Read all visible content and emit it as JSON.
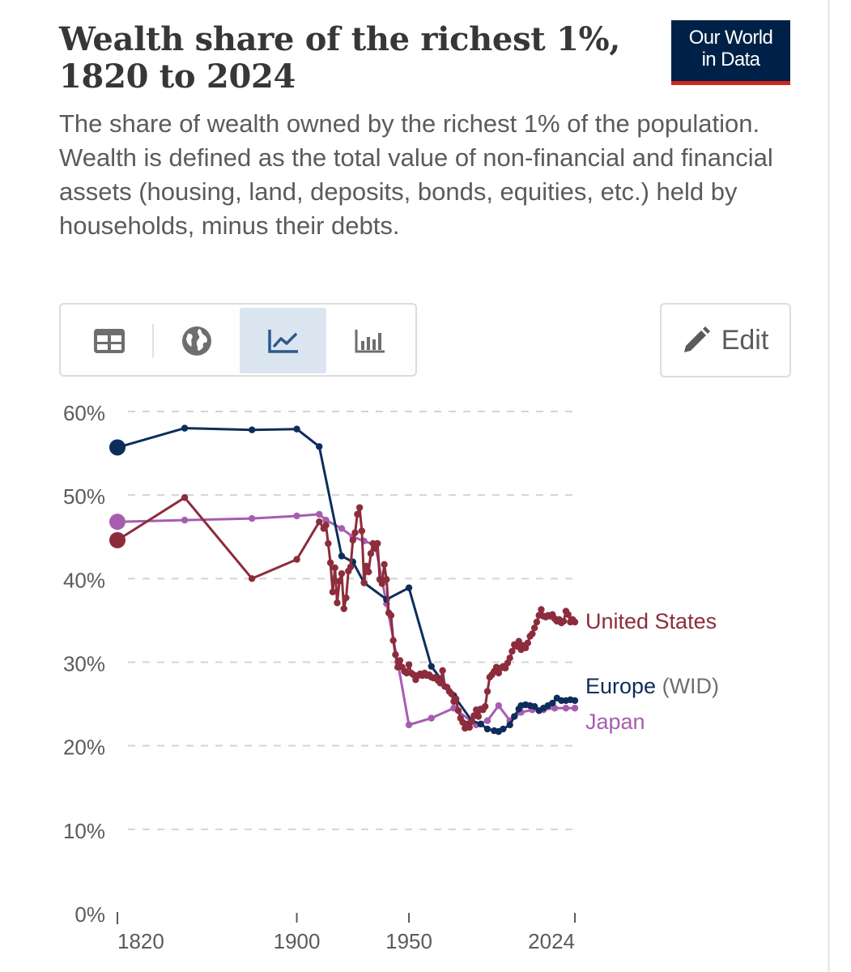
{
  "header": {
    "title_line1": "Wealth share of the richest 1%,",
    "title_line2": "1820 to 2024",
    "subtitle": "The share of wealth owned by the richest 1% of the population. Wealth is defined as the total value of non-financial and financial assets (housing, land, deposits, bonds, equities, etc.) held by households, minus their debts.",
    "logo_line1": "Our World",
    "logo_line2": "in Data"
  },
  "toolbar": {
    "tabs": [
      {
        "name": "table",
        "icon": "table-icon",
        "active": false
      },
      {
        "name": "map",
        "icon": "globe-icon",
        "active": false
      },
      {
        "name": "chart",
        "icon": "line-chart-icon",
        "active": true
      },
      {
        "name": "bar",
        "icon": "bar-chart-icon",
        "active": false
      }
    ],
    "edit_label": "Edit",
    "edit_icon": "pencil-icon"
  },
  "colors": {
    "us": "#8c2c3c",
    "europe": "#0f2d5a",
    "japan": "#a65db0",
    "grid": "#d4d4d4",
    "axis": "#5b5b5b"
  },
  "chart_data": {
    "type": "line",
    "title": "Wealth share of the richest 1%, 1820 to 2024",
    "xlim": [
      1820,
      2024
    ],
    "ylim": [
      0,
      60
    ],
    "x_ticks": [
      {
        "value": 1820,
        "label": "1820"
      },
      {
        "value": 1900,
        "label": "1900"
      },
      {
        "value": 1950,
        "label": "1950"
      },
      {
        "value": 2024,
        "label": "2024"
      }
    ],
    "y_ticks": [
      {
        "value": 0,
        "label": "0%"
      },
      {
        "value": 10,
        "label": "10%"
      },
      {
        "value": 20,
        "label": "20%"
      },
      {
        "value": 30,
        "label": "30%"
      },
      {
        "value": 40,
        "label": "40%"
      },
      {
        "value": 50,
        "label": "50%"
      },
      {
        "value": 60,
        "label": "60%"
      }
    ],
    "grid": true,
    "series": [
      {
        "name": "Japan",
        "label_main": "Japan",
        "label_extra": "",
        "color": "#a65db0",
        "dot_size": "small",
        "points": [
          [
            1820,
            46.8
          ],
          [
            1850,
            47
          ],
          [
            1880,
            47.2
          ],
          [
            1900,
            47.5
          ],
          [
            1910,
            47.7
          ],
          [
            1913,
            47
          ],
          [
            1920,
            46
          ],
          [
            1925,
            45
          ],
          [
            1930,
            44.5
          ],
          [
            1935,
            44
          ],
          [
            1940,
            37
          ],
          [
            1945,
            30
          ],
          [
            1950,
            22.5
          ],
          [
            1960,
            23.3
          ],
          [
            1970,
            24.5
          ],
          [
            1980,
            22.5
          ],
          [
            1985,
            23
          ],
          [
            1990,
            24.8
          ],
          [
            1995,
            23
          ],
          [
            2000,
            24
          ],
          [
            2005,
            24.3
          ],
          [
            2010,
            24.3
          ],
          [
            2015,
            24.5
          ],
          [
            2020,
            24.5
          ],
          [
            2024,
            24.5
          ]
        ]
      },
      {
        "name": "Europe (WID)",
        "label_main": "Europe",
        "label_extra": " (WID)",
        "color": "#0f2d5a",
        "dot_size": "small",
        "points": [
          [
            1820,
            55.7
          ],
          [
            1850,
            58
          ],
          [
            1880,
            57.8
          ],
          [
            1900,
            57.9
          ],
          [
            1910,
            55.8
          ],
          [
            1920,
            42.7
          ],
          [
            1925,
            42
          ],
          [
            1930,
            39.5
          ],
          [
            1940,
            37.5
          ],
          [
            1950,
            38.9
          ],
          [
            1960,
            29.5
          ],
          [
            1970,
            26
          ],
          [
            1978,
            23
          ],
          [
            1982,
            22.6
          ],
          [
            1985,
            22
          ],
          [
            1988,
            21.8
          ],
          [
            1990,
            21.7
          ],
          [
            1992,
            22
          ],
          [
            1995,
            22.5
          ],
          [
            1997,
            23.5
          ],
          [
            1999,
            24.4
          ],
          [
            2000,
            24.8
          ],
          [
            2002,
            24.9
          ],
          [
            2004,
            24.8
          ],
          [
            2006,
            24.7
          ],
          [
            2008,
            24.2
          ],
          [
            2010,
            24.5
          ],
          [
            2012,
            24.8
          ],
          [
            2014,
            25.1
          ],
          [
            2016,
            25.7
          ],
          [
            2018,
            25.4
          ],
          [
            2020,
            25.4
          ],
          [
            2022,
            25.5
          ],
          [
            2024,
            25.4
          ]
        ]
      },
      {
        "name": "United States",
        "label_main": "United States",
        "label_extra": "",
        "color": "#8c2c3c",
        "dot_size": "small",
        "points": [
          [
            1820,
            44.6
          ],
          [
            1850,
            49.7
          ],
          [
            1880,
            40
          ],
          [
            1900,
            42.3
          ],
          [
            1910,
            46.8
          ],
          [
            1912,
            46
          ],
          [
            1913,
            46.4
          ],
          [
            1914,
            44.2
          ],
          [
            1915,
            41.9
          ],
          [
            1916,
            38.4
          ],
          [
            1917,
            41.3
          ],
          [
            1918,
            37.1
          ],
          [
            1919,
            39.7
          ],
          [
            1920,
            40.6
          ],
          [
            1921,
            36.4
          ],
          [
            1922,
            37.7
          ],
          [
            1923,
            40.9
          ],
          [
            1924,
            41.4
          ],
          [
            1925,
            44.6
          ],
          [
            1926,
            45.5
          ],
          [
            1927,
            47.7
          ],
          [
            1928,
            48.5
          ],
          [
            1929,
            45.7
          ],
          [
            1930,
            39.5
          ],
          [
            1931,
            41.5
          ],
          [
            1932,
            40.8
          ],
          [
            1933,
            43
          ],
          [
            1934,
            44.2
          ],
          [
            1935,
            43.6
          ],
          [
            1936,
            44.2
          ],
          [
            1937,
            39.9
          ],
          [
            1938,
            39.4
          ],
          [
            1939,
            41.7
          ],
          [
            1940,
            39.9
          ],
          [
            1941,
            35.9
          ],
          [
            1942,
            35.6
          ],
          [
            1943,
            32.6
          ],
          [
            1944,
            30.9
          ],
          [
            1945,
            29.4
          ],
          [
            1946,
            30.2
          ],
          [
            1947,
            29.4
          ],
          [
            1948,
            28.9
          ],
          [
            1949,
            28.7
          ],
          [
            1950,
            29.7
          ],
          [
            1951,
            28.7
          ],
          [
            1952,
            28.5
          ],
          [
            1953,
            27.9
          ],
          [
            1954,
            28.4
          ],
          [
            1955,
            28.6
          ],
          [
            1956,
            28.4
          ],
          [
            1957,
            28.7
          ],
          [
            1958,
            28.4
          ],
          [
            1959,
            28.5
          ],
          [
            1960,
            28.2
          ],
          [
            1961,
            28.1
          ],
          [
            1962,
            28.2
          ],
          [
            1963,
            27.8
          ],
          [
            1964,
            27.5
          ],
          [
            1965,
            29
          ],
          [
            1966,
            27.1
          ],
          [
            1967,
            27
          ],
          [
            1968,
            26.5
          ],
          [
            1969,
            26.2
          ],
          [
            1970,
            25.3
          ],
          [
            1971,
            25.6
          ],
          [
            1972,
            24.2
          ],
          [
            1973,
            23.3
          ],
          [
            1974,
            22.8
          ],
          [
            1975,
            22.1
          ],
          [
            1976,
            22.6
          ],
          [
            1977,
            22.2
          ],
          [
            1978,
            22.9
          ],
          [
            1979,
            23.6
          ],
          [
            1980,
            24.3
          ],
          [
            1981,
            23.5
          ],
          [
            1982,
            24.4
          ],
          [
            1983,
            24.3
          ],
          [
            1984,
            24.7
          ],
          [
            1985,
            26.5
          ],
          [
            1986,
            28.2
          ],
          [
            1987,
            28.5
          ],
          [
            1988,
            28.9
          ],
          [
            1989,
            29.4
          ],
          [
            1990,
            28.7
          ],
          [
            1991,
            29.3
          ],
          [
            1992,
            29.5
          ],
          [
            1993,
            29.3
          ],
          [
            1994,
            29.9
          ],
          [
            1995,
            30.5
          ],
          [
            1996,
            31.3
          ],
          [
            1997,
            32.1
          ],
          [
            1998,
            31.9
          ],
          [
            1999,
            32.5
          ],
          [
            2000,
            31.5
          ],
          [
            2001,
            32
          ],
          [
            2002,
            31.7
          ],
          [
            2003,
            32.3
          ],
          [
            2004,
            33.1
          ],
          [
            2005,
            33.4
          ],
          [
            2006,
            34.1
          ],
          [
            2007,
            34.8
          ],
          [
            2008,
            35.6
          ],
          [
            2009,
            36.3
          ],
          [
            2010,
            35.5
          ],
          [
            2011,
            35.4
          ],
          [
            2012,
            35.6
          ],
          [
            2013,
            35.5
          ],
          [
            2014,
            35.7
          ],
          [
            2015,
            35.2
          ],
          [
            2016,
            34.9
          ],
          [
            2017,
            35.1
          ],
          [
            2018,
            34.7
          ],
          [
            2019,
            34.9
          ],
          [
            2020,
            36.1
          ],
          [
            2021,
            35.7
          ],
          [
            2022,
            34.8
          ],
          [
            2023,
            35.1
          ],
          [
            2024,
            34.8
          ]
        ]
      }
    ]
  }
}
